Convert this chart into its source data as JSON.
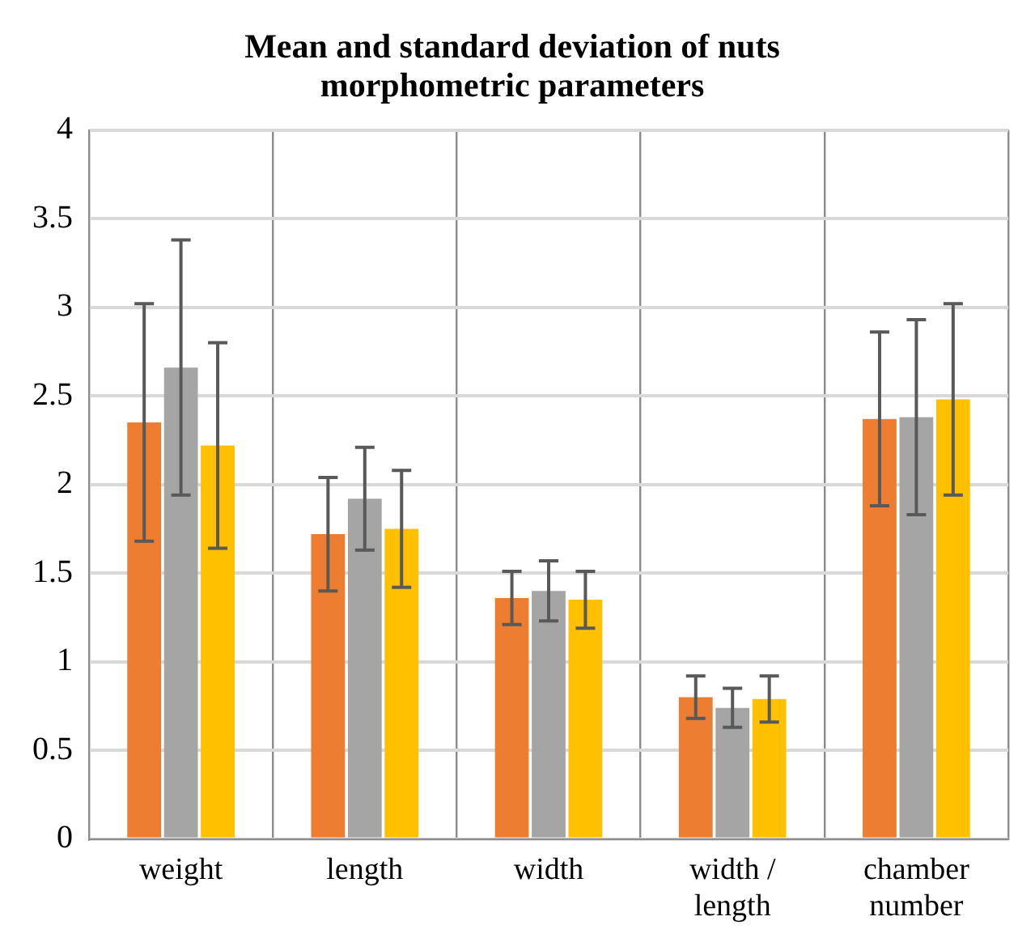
{
  "chart_data": {
    "type": "bar",
    "title": "Mean and standard deviation of nuts morphometric parameters",
    "categories": [
      "weight",
      "length",
      "width",
      "width / length",
      "chamber number"
    ],
    "series": [
      {
        "color": "#ed7d31",
        "values": [
          2.35,
          1.72,
          1.36,
          0.8,
          2.37
        ],
        "errors": [
          0.67,
          0.32,
          0.15,
          0.12,
          0.49
        ]
      },
      {
        "color": "#a5a5a5",
        "values": [
          2.66,
          1.92,
          1.4,
          0.74,
          2.38
        ],
        "errors": [
          0.72,
          0.29,
          0.17,
          0.11,
          0.55
        ]
      },
      {
        "color": "#ffc000",
        "values": [
          2.22,
          1.75,
          1.35,
          0.79,
          2.48
        ],
        "errors": [
          0.58,
          0.33,
          0.16,
          0.13,
          0.54
        ]
      }
    ],
    "ylim": [
      0,
      4
    ],
    "yticks": [
      0,
      0.5,
      1,
      1.5,
      2,
      2.5,
      3,
      3.5,
      4
    ],
    "grid": true,
    "legend": false
  }
}
